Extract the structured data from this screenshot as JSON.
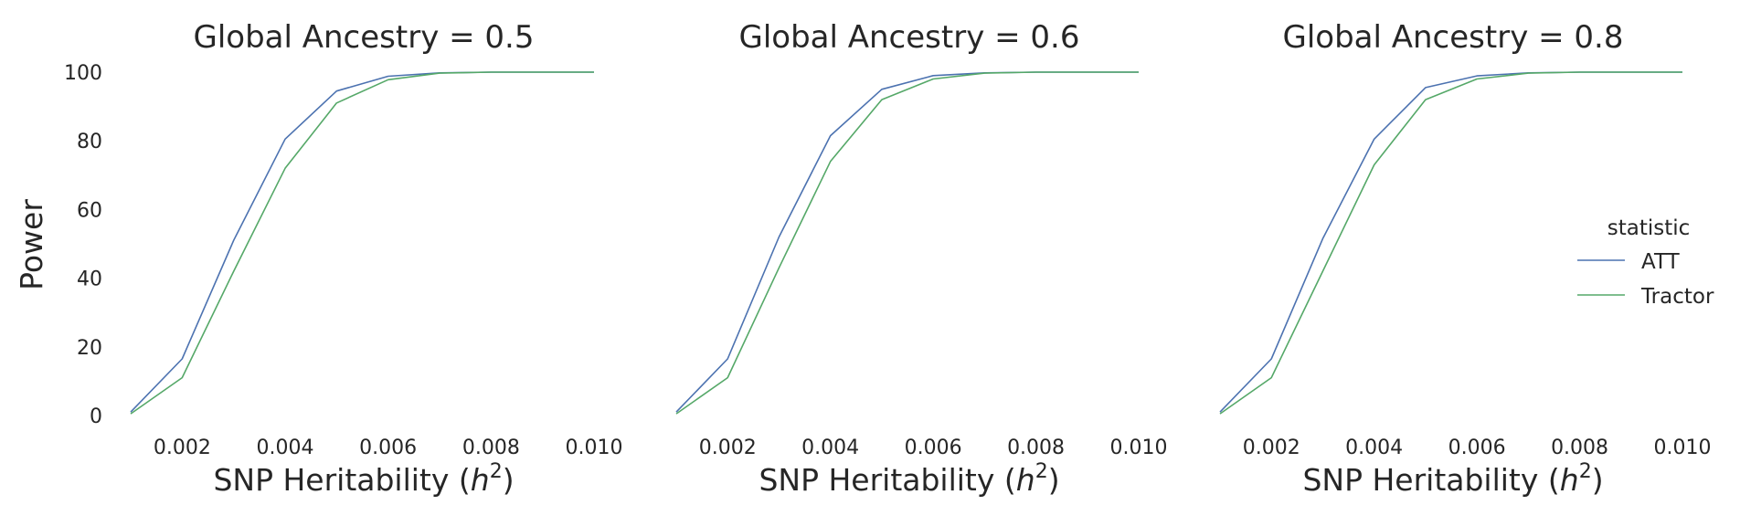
{
  "chart_data": {
    "type": "line",
    "ylabel": "Power",
    "xlabel_main": "SNP Heritability (",
    "xlabel_var": "h",
    "xlabel_sup": "2",
    "xlabel_close": ")",
    "x": [
      0.001,
      0.002,
      0.003,
      0.004,
      0.005,
      0.006,
      0.007,
      0.008,
      0.009,
      0.01
    ],
    "xlim": [
      0.001,
      0.01
    ],
    "ylim": [
      0,
      100
    ],
    "x_ticks": [
      "0.002",
      "0.004",
      "0.006",
      "0.008",
      "0.010"
    ],
    "y_ticks": [
      "0",
      "20",
      "40",
      "60",
      "80",
      "100"
    ],
    "grid": false,
    "legend": {
      "title": "statistic",
      "placement": "right",
      "entries": [
        "ATT",
        "Tractor"
      ]
    },
    "colors": {
      "ATT": "#4c72b0",
      "Tractor": "#55a868"
    },
    "panels": [
      {
        "title": "Global Ancestry = 0.5",
        "series": [
          {
            "name": "ATT",
            "values": [
              1,
              16.5,
              51,
              80.5,
              94.5,
              98.8,
              99.8,
              100,
              100,
              100
            ]
          },
          {
            "name": "Tractor",
            "values": [
              0.5,
              11,
              42,
              72,
              91,
              97.8,
              99.7,
              100,
              100,
              100
            ]
          }
        ]
      },
      {
        "title": "Global Ancestry = 0.6",
        "series": [
          {
            "name": "ATT",
            "values": [
              1,
              16.5,
              52,
              81.5,
              95,
              99,
              99.8,
              100,
              100,
              100
            ]
          },
          {
            "name": "Tractor",
            "values": [
              0.5,
              11,
              43,
              74,
              92,
              98,
              99.7,
              100,
              100,
              100
            ]
          }
        ]
      },
      {
        "title": "Global Ancestry = 0.8",
        "series": [
          {
            "name": "ATT",
            "values": [
              1,
              16.5,
              51.5,
              80.5,
              95.5,
              98.9,
              99.8,
              100,
              100,
              100
            ]
          },
          {
            "name": "Tractor",
            "values": [
              0.5,
              11,
              42,
              73,
              92,
              98,
              99.7,
              100,
              100,
              100
            ]
          }
        ]
      }
    ]
  }
}
